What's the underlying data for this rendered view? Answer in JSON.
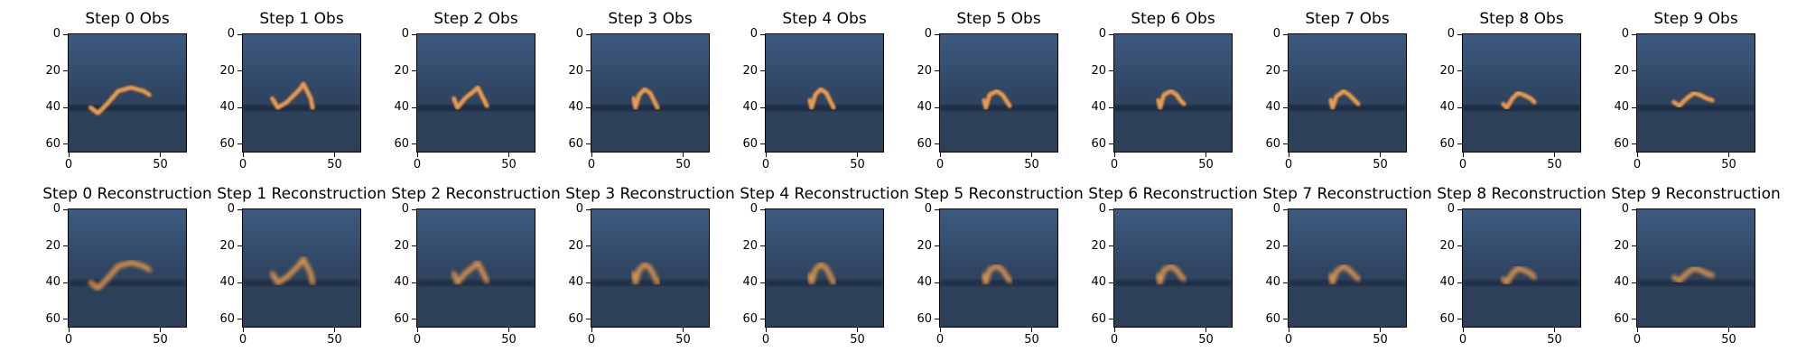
{
  "rows": [
    {
      "kind": "observation",
      "titles": [
        "Step 0 Obs",
        "Step 1 Obs",
        "Step 2 Obs",
        "Step 3 Obs",
        "Step 4 Obs",
        "Step 5 Obs",
        "Step 6 Obs",
        "Step 7 Obs",
        "Step 8 Obs",
        "Step 9 Obs"
      ]
    },
    {
      "kind": "reconstruction",
      "titles": [
        "Step 0 Reconstruction",
        "Step 1 Reconstruction",
        "Step 2 Reconstruction",
        "Step 3 Reconstruction",
        "Step 4 Reconstruction",
        "Step 5 Reconstruction",
        "Step 6 Reconstruction",
        "Step 7 Reconstruction",
        "Step 8 Reconstruction",
        "Step 9 Reconstruction"
      ]
    }
  ],
  "axes": {
    "x_ticks": [
      "0",
      "50"
    ],
    "x_tick_values": [
      0,
      50
    ],
    "y_ticks": [
      "0",
      "20",
      "40",
      "60"
    ],
    "y_tick_values": [
      0,
      20,
      40,
      60
    ],
    "image_size": 64
  },
  "colors": {
    "background_top": "#3c5a80",
    "background_bottom": "#2e4460",
    "ground_band": "#1b2b40",
    "floor": "#2d4058",
    "agent": "#e8a05a",
    "agent_edge": "#c27a38"
  }
}
